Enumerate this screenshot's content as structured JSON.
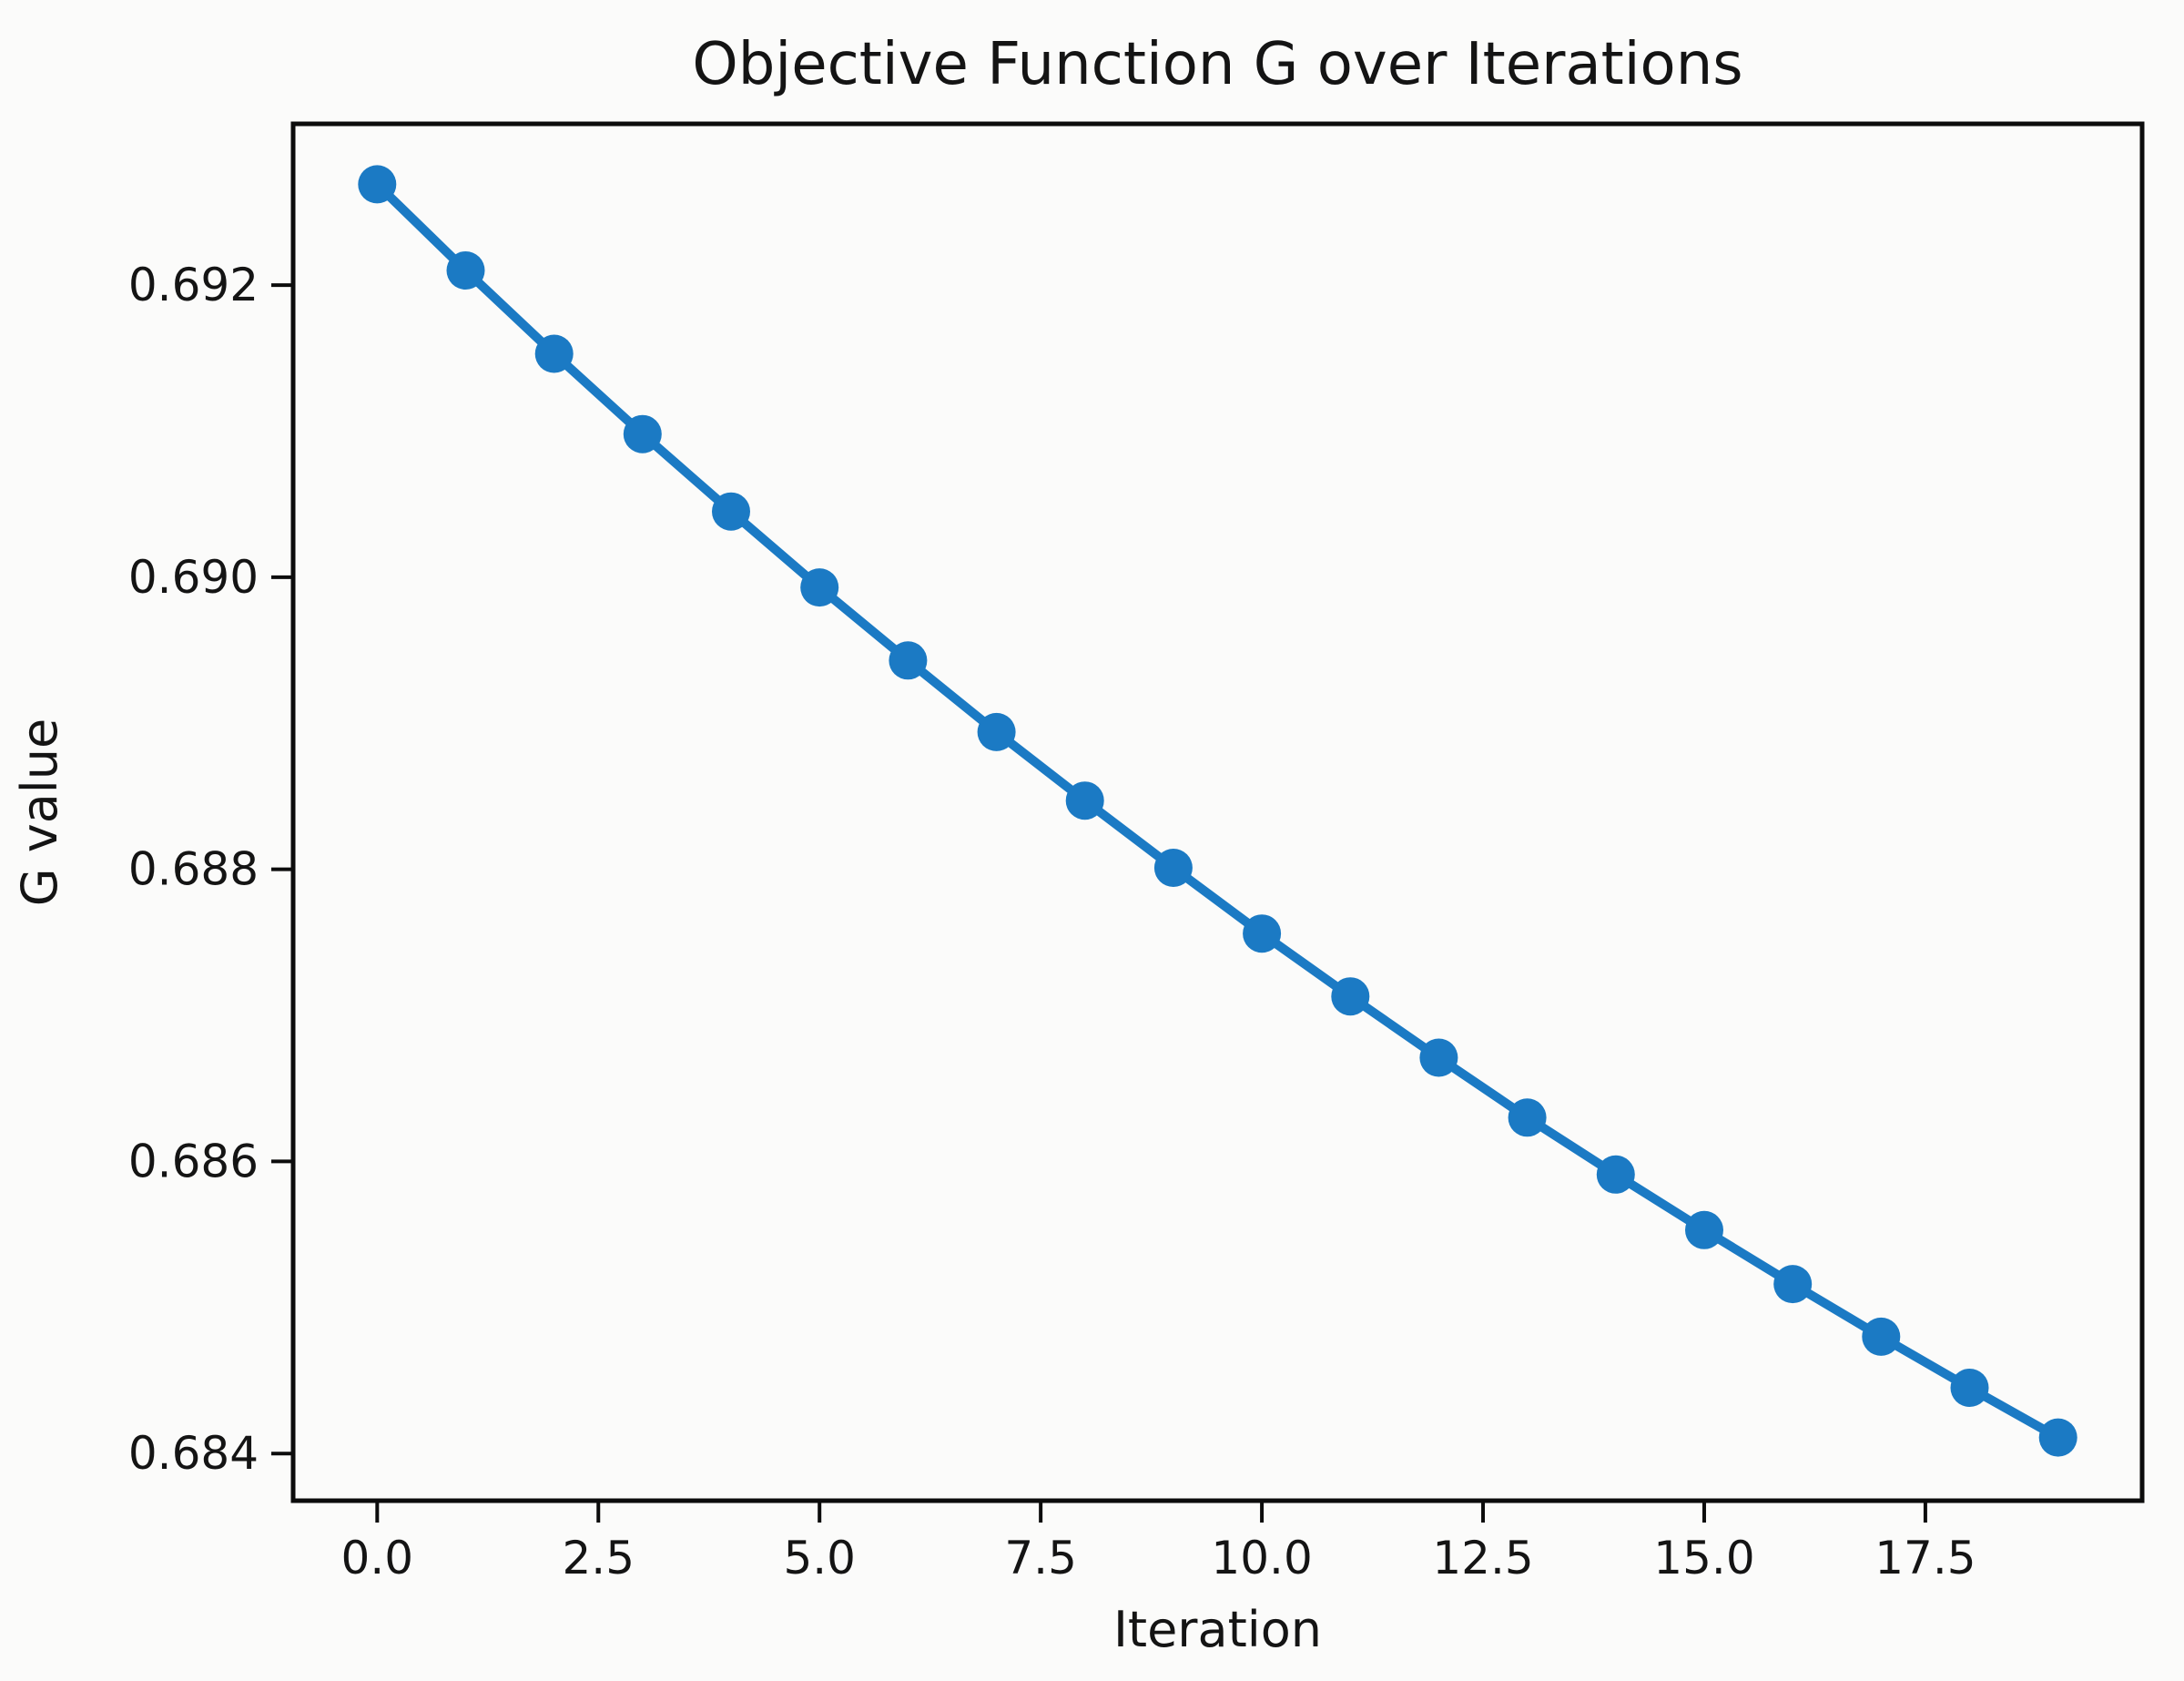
{
  "chart_data": {
    "type": "line",
    "title": "Objective Function G over Iterations",
    "xlabel": "Iteration",
    "ylabel": "G value",
    "series": [
      {
        "name": "G",
        "x": [
          0,
          1,
          2,
          3,
          4,
          5,
          6,
          7,
          8,
          9,
          10,
          11,
          12,
          13,
          14,
          15,
          16,
          17,
          18,
          19
        ],
        "values": [
          0.69269,
          0.6921,
          0.69153,
          0.69098,
          0.69045,
          0.68993,
          0.68943,
          0.68894,
          0.68847,
          0.68801,
          0.68756,
          0.68713,
          0.68671,
          0.6863,
          0.68591,
          0.68553,
          0.68516,
          0.6848,
          0.68445,
          0.68411
        ]
      }
    ],
    "xlim": [
      -0.95,
      19.95
    ],
    "ylim": [
      0.683677,
      0.693104
    ],
    "x_ticks": [
      0.0,
      2.5,
      5.0,
      7.5,
      10.0,
      12.5,
      15.0,
      17.5
    ],
    "x_tick_labels": [
      "0.0",
      "2.5",
      "5.0",
      "7.5",
      "10.0",
      "12.5",
      "15.0",
      "17.5"
    ],
    "y_ticks": [
      0.692,
      0.69,
      0.688,
      0.686,
      0.684
    ],
    "y_tick_labels": [
      "0.692",
      "0.690",
      "0.688",
      "0.686",
      "0.684"
    ],
    "grid": false,
    "legend_position": "none",
    "line_color": "#1b7ac4",
    "marker_shape": "circle",
    "spine_color": "#0c0c0c",
    "text_color": "#141414",
    "background_color": "#fbfbfa"
  }
}
